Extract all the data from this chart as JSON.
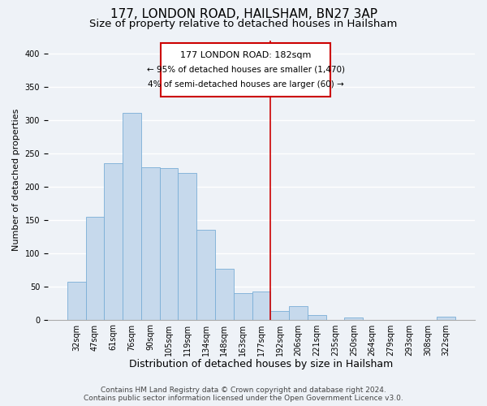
{
  "title": "177, LONDON ROAD, HAILSHAM, BN27 3AP",
  "subtitle": "Size of property relative to detached houses in Hailsham",
  "xlabel": "Distribution of detached houses by size in Hailsham",
  "ylabel": "Number of detached properties",
  "bar_labels": [
    "32sqm",
    "47sqm",
    "61sqm",
    "76sqm",
    "90sqm",
    "105sqm",
    "119sqm",
    "134sqm",
    "148sqm",
    "163sqm",
    "177sqm",
    "192sqm",
    "206sqm",
    "221sqm",
    "235sqm",
    "250sqm",
    "264sqm",
    "279sqm",
    "293sqm",
    "308sqm",
    "322sqm"
  ],
  "bar_values": [
    57,
    155,
    236,
    311,
    229,
    228,
    221,
    135,
    76,
    40,
    42,
    13,
    20,
    7,
    0,
    3,
    0,
    0,
    0,
    0,
    4
  ],
  "bar_color": "#c6d9ec",
  "bar_edge_color": "#7aaed6",
  "vline_color": "#cc0000",
  "ylim": [
    0,
    420
  ],
  "yticks": [
    0,
    50,
    100,
    150,
    200,
    250,
    300,
    350,
    400
  ],
  "annotation_title": "177 LONDON ROAD: 182sqm",
  "annotation_line1": "← 95% of detached houses are smaller (1,470)",
  "annotation_line2": "4% of semi-detached houses are larger (60) →",
  "annotation_box_color": "#ffffff",
  "annotation_box_edge": "#cc0000",
  "footer_line1": "Contains HM Land Registry data © Crown copyright and database right 2024.",
  "footer_line2": "Contains public sector information licensed under the Open Government Licence v3.0.",
  "background_color": "#eef2f7",
  "grid_color": "#ffffff",
  "title_fontsize": 11,
  "subtitle_fontsize": 9.5,
  "xlabel_fontsize": 9,
  "ylabel_fontsize": 8,
  "tick_fontsize": 7,
  "footer_fontsize": 6.5,
  "annot_title_fontsize": 8,
  "annot_text_fontsize": 7.5
}
